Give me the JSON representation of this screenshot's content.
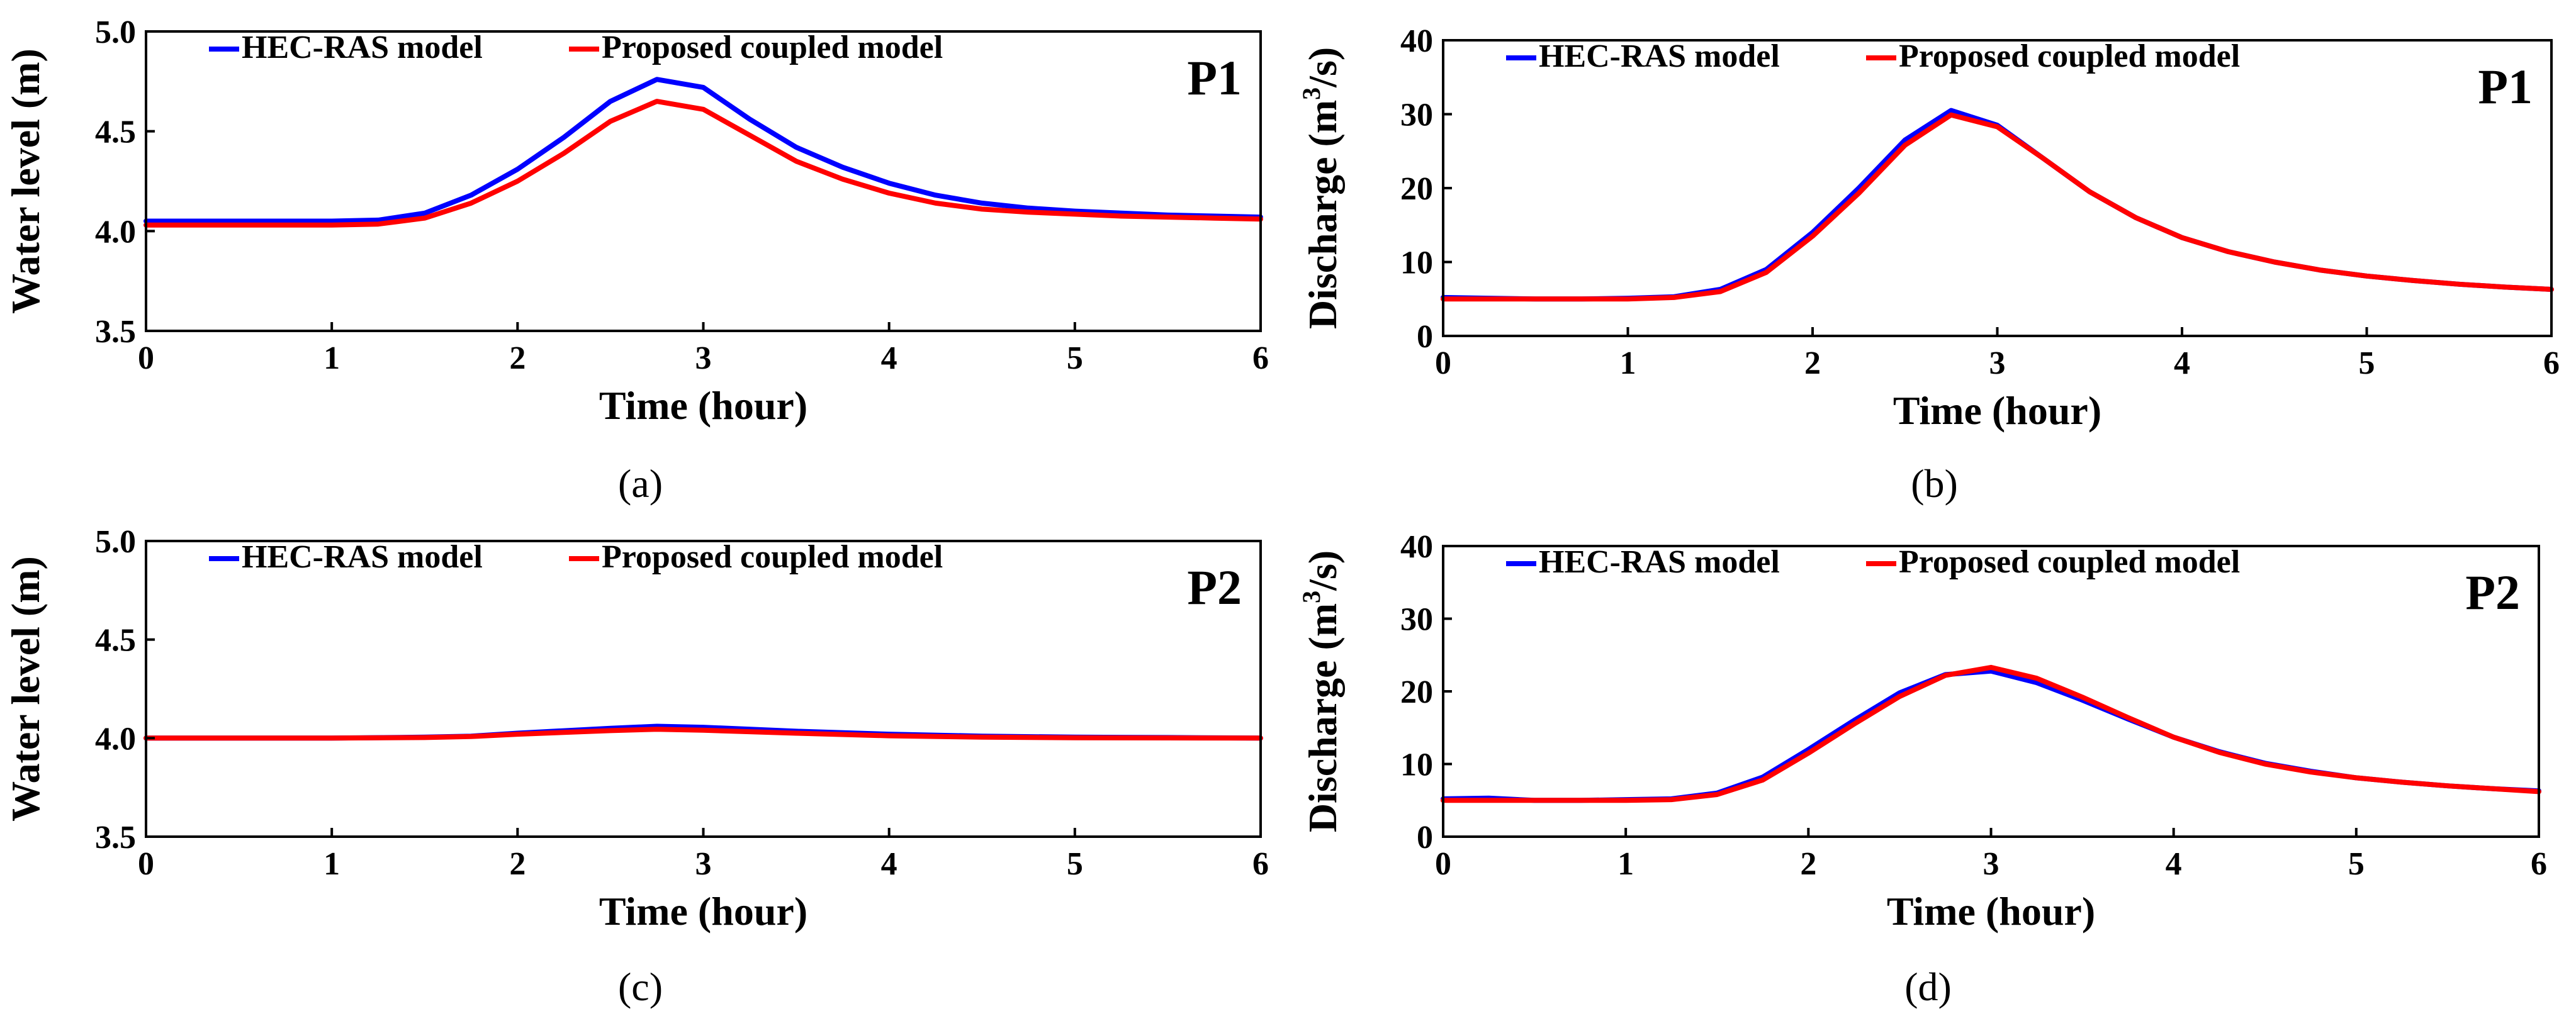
{
  "chart_data": [
    {
      "id": "a",
      "type": "line",
      "panel_label": "P1",
      "caption": "(a)",
      "xlabel": "Time (hour)",
      "ylabel": "Water level (m)",
      "ylabel_sup": "",
      "ylabel_tail": "",
      "xlim": [
        0,
        6
      ],
      "ylim": [
        3.5,
        5.0
      ],
      "xticks": [
        0,
        1,
        2,
        3,
        4,
        5,
        6
      ],
      "yticks": [
        3.5,
        4.0,
        4.5,
        5.0
      ],
      "xtick_labels": [
        "0",
        "1",
        "2",
        "3",
        "4",
        "5",
        "6"
      ],
      "ytick_labels": [
        "3.5",
        "4.0",
        "4.5",
        "5.0"
      ],
      "legend": [
        "HEC-RAS model",
        "Proposed coupled model"
      ],
      "legend_position": "top-left",
      "series": [
        {
          "name": "HEC-RAS model",
          "color": "#0000ff",
          "x": [
            0,
            0.25,
            0.5,
            0.75,
            1.0,
            1.25,
            1.5,
            1.75,
            2.0,
            2.25,
            2.5,
            2.75,
            3.0,
            3.25,
            3.5,
            3.75,
            4.0,
            4.25,
            4.5,
            4.75,
            5.0,
            5.25,
            5.5,
            5.75,
            6.0
          ],
          "y": [
            4.05,
            4.05,
            4.05,
            4.05,
            4.05,
            4.055,
            4.09,
            4.18,
            4.31,
            4.47,
            4.65,
            4.76,
            4.72,
            4.56,
            4.42,
            4.32,
            4.24,
            4.18,
            4.14,
            4.115,
            4.1,
            4.09,
            4.08,
            4.075,
            4.07
          ]
        },
        {
          "name": "Proposed coupled model",
          "color": "#ff0000",
          "x": [
            0,
            0.25,
            0.5,
            0.75,
            1.0,
            1.25,
            1.5,
            1.75,
            2.0,
            2.25,
            2.5,
            2.75,
            3.0,
            3.25,
            3.5,
            3.75,
            4.0,
            4.25,
            4.5,
            4.75,
            5.0,
            5.25,
            5.5,
            5.75,
            6.0
          ],
          "y": [
            4.03,
            4.03,
            4.03,
            4.03,
            4.03,
            4.035,
            4.065,
            4.14,
            4.25,
            4.39,
            4.55,
            4.65,
            4.61,
            4.48,
            4.35,
            4.26,
            4.19,
            4.14,
            4.11,
            4.095,
            4.085,
            4.075,
            4.07,
            4.065,
            4.06
          ]
        }
      ]
    },
    {
      "id": "b",
      "type": "line",
      "panel_label": "P1",
      "caption": "(b)",
      "xlabel": "Time (hour)",
      "ylabel": "Discharge (m",
      "ylabel_sup": "3",
      "ylabel_tail": "/s)",
      "xlim": [
        0,
        6
      ],
      "ylim": [
        0,
        40
      ],
      "xticks": [
        0,
        1,
        2,
        3,
        4,
        5,
        6
      ],
      "yticks": [
        0,
        10,
        20,
        30,
        40
      ],
      "xtick_labels": [
        "0",
        "1",
        "2",
        "3",
        "4",
        "5",
        "6"
      ],
      "ytick_labels": [
        "0",
        "10",
        "20",
        "30",
        "40"
      ],
      "legend": [
        "HEC-RAS model",
        "Proposed coupled model"
      ],
      "legend_position": "top-left",
      "series": [
        {
          "name": "HEC-RAS model",
          "color": "#0000ff",
          "x": [
            0,
            0.25,
            0.5,
            0.75,
            1.0,
            1.25,
            1.5,
            1.75,
            2.0,
            2.25,
            2.5,
            2.75,
            3.0,
            3.25,
            3.5,
            3.75,
            4.0,
            4.25,
            4.5,
            4.75,
            5.0,
            5.25,
            5.5,
            5.75,
            6.0
          ],
          "y": [
            5.2,
            5.1,
            5.0,
            5.0,
            5.1,
            5.3,
            6.3,
            9.0,
            14.0,
            20.0,
            26.5,
            30.5,
            28.5,
            24.0,
            19.5,
            16.0,
            13.3,
            11.4,
            10.0,
            8.9,
            8.1,
            7.5,
            7.0,
            6.6,
            6.3
          ]
        },
        {
          "name": "Proposed coupled model",
          "color": "#ff0000",
          "x": [
            0,
            0.25,
            0.5,
            0.75,
            1.0,
            1.25,
            1.5,
            1.75,
            2.0,
            2.25,
            2.5,
            2.75,
            3.0,
            3.25,
            3.5,
            3.75,
            4.0,
            4.25,
            4.5,
            4.75,
            5.0,
            5.25,
            5.5,
            5.75,
            6.0
          ],
          "y": [
            5.0,
            5.0,
            5.0,
            5.0,
            5.0,
            5.2,
            6.0,
            8.6,
            13.5,
            19.3,
            25.8,
            29.9,
            28.3,
            24.0,
            19.5,
            16.0,
            13.3,
            11.4,
            10.0,
            8.9,
            8.1,
            7.5,
            7.0,
            6.6,
            6.3
          ]
        }
      ]
    },
    {
      "id": "c",
      "type": "line",
      "panel_label": "P2",
      "caption": "(c)",
      "xlabel": "Time (hour)",
      "ylabel": "Water level (m)",
      "ylabel_sup": "",
      "ylabel_tail": "",
      "xlim": [
        0,
        6
      ],
      "ylim": [
        3.5,
        5.0
      ],
      "xticks": [
        0,
        1,
        2,
        3,
        4,
        5,
        6
      ],
      "yticks": [
        3.5,
        4.0,
        4.5,
        5.0
      ],
      "xtick_labels": [
        "0",
        "1",
        "2",
        "3",
        "4",
        "5",
        "6"
      ],
      "ytick_labels": [
        "3.5",
        "4.0",
        "4.5",
        "5.0"
      ],
      "legend": [
        "HEC-RAS model",
        "Proposed coupled model"
      ],
      "legend_position": "top-left",
      "series": [
        {
          "name": "HEC-RAS model",
          "color": "#0000ff",
          "x": [
            0,
            0.5,
            1.0,
            1.5,
            1.75,
            2.0,
            2.5,
            2.75,
            3.0,
            3.5,
            4.0,
            4.5,
            5.0,
            5.5,
            6.0
          ],
          "y": [
            4.0,
            4.0,
            4.0,
            4.005,
            4.01,
            4.025,
            4.05,
            4.06,
            4.055,
            4.035,
            4.02,
            4.01,
            4.005,
            4.003,
            4.0
          ]
        },
        {
          "name": "Proposed coupled model",
          "color": "#ff0000",
          "x": [
            0,
            0.5,
            1.0,
            1.5,
            1.75,
            2.0,
            2.5,
            2.75,
            3.0,
            3.5,
            4.0,
            4.5,
            5.0,
            5.5,
            6.0
          ],
          "y": [
            4.0,
            4.0,
            4.0,
            4.003,
            4.008,
            4.02,
            4.038,
            4.045,
            4.04,
            4.025,
            4.012,
            4.005,
            4.002,
            4.001,
            4.0
          ]
        }
      ]
    },
    {
      "id": "d",
      "type": "line",
      "panel_label": "P2",
      "caption": "(d)",
      "xlabel": "Time (hour)",
      "ylabel": "Discharge (m",
      "ylabel_sup": "3",
      "ylabel_tail": "/s)",
      "xlim": [
        0,
        6
      ],
      "ylim": [
        0,
        40
      ],
      "xticks": [
        0,
        1,
        2,
        3,
        4,
        5,
        6
      ],
      "yticks": [
        0,
        10,
        20,
        30,
        40
      ],
      "xtick_labels": [
        "0",
        "1",
        "2",
        "3",
        "4",
        "5",
        "6"
      ],
      "ytick_labels": [
        "0",
        "10",
        "20",
        "30",
        "40"
      ],
      "legend": [
        "HEC-RAS model",
        "Proposed coupled model"
      ],
      "legend_position": "top-left",
      "series": [
        {
          "name": "HEC-RAS model",
          "color": "#0000ff",
          "x": [
            0,
            0.25,
            0.5,
            0.75,
            1.0,
            1.25,
            1.5,
            1.75,
            2.0,
            2.25,
            2.5,
            2.75,
            3.0,
            3.25,
            3.5,
            3.75,
            4.0,
            4.25,
            4.5,
            4.75,
            5.0,
            5.25,
            5.5,
            5.75,
            6.0
          ],
          "y": [
            5.2,
            5.3,
            5.0,
            5.0,
            5.1,
            5.2,
            6.0,
            8.2,
            12.0,
            16.0,
            19.8,
            22.3,
            22.8,
            21.2,
            18.8,
            16.2,
            13.7,
            11.7,
            10.1,
            9.0,
            8.1,
            7.5,
            7.0,
            6.6,
            6.3
          ]
        },
        {
          "name": "Proposed coupled model",
          "color": "#ff0000",
          "x": [
            0,
            0.25,
            0.5,
            0.75,
            1.0,
            1.25,
            1.5,
            1.75,
            2.0,
            2.25,
            2.5,
            2.75,
            3.0,
            3.25,
            3.5,
            3.75,
            4.0,
            4.25,
            4.5,
            4.75,
            5.0,
            5.25,
            5.5,
            5.75,
            6.0
          ],
          "y": [
            5.0,
            5.0,
            5.0,
            5.0,
            5.0,
            5.1,
            5.8,
            7.8,
            11.5,
            15.5,
            19.3,
            22.2,
            23.3,
            21.8,
            19.2,
            16.4,
            13.7,
            11.6,
            10.0,
            8.9,
            8.1,
            7.5,
            7.0,
            6.6,
            6.2
          ]
        }
      ]
    }
  ]
}
